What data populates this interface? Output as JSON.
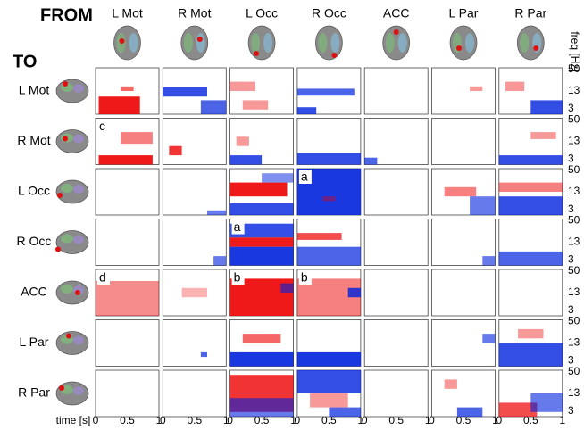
{
  "header": {
    "from": "FROM",
    "to": "TO"
  },
  "columns": [
    "L Mot",
    "R Mot",
    "L Occ",
    "R Occ",
    "ACC",
    "L Par",
    "R Par"
  ],
  "rows": [
    "L Mot",
    "R Mot",
    "L Occ",
    "R Occ",
    "ACC",
    "L Par",
    "R Par"
  ],
  "freq_axis": {
    "label": "freq [Hz]",
    "ticks": [
      "50",
      "13",
      "3"
    ]
  },
  "time_axis": {
    "label": "time [s]",
    "ticks": [
      "0",
      "0.5",
      "1"
    ]
  },
  "panel_letters": [
    {
      "row": 1,
      "col": 0,
      "letter": "c"
    },
    {
      "row": 2,
      "col": 3,
      "letter": "a"
    },
    {
      "row": 3,
      "col": 2,
      "letter": "a"
    },
    {
      "row": 4,
      "col": 0,
      "letter": "d"
    },
    {
      "row": 4,
      "col": 2,
      "letter": "b"
    },
    {
      "row": 4,
      "col": 3,
      "letter": "b"
    }
  ]
}
